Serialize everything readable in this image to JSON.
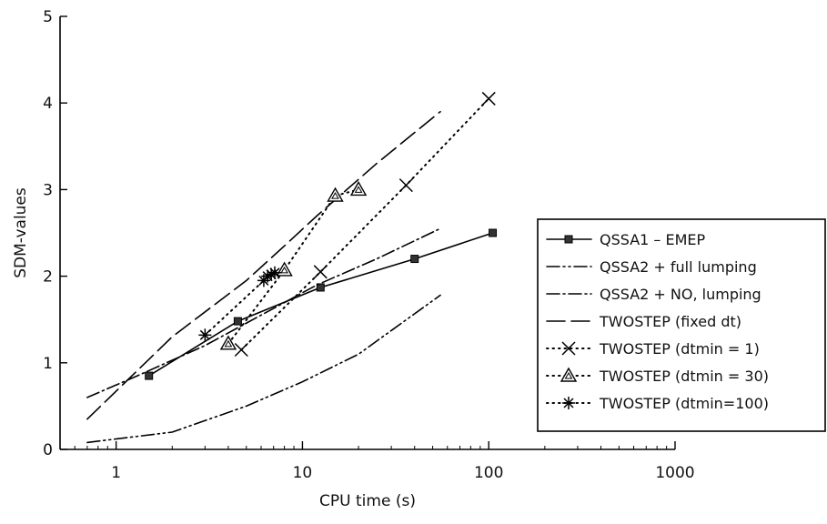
{
  "chart_data": {
    "type": "line",
    "title": "",
    "xlabel": "CPU time (s)",
    "ylabel": "SDM-values",
    "xscale": "log",
    "xlim": [
      0.5,
      1000
    ],
    "ylim": [
      0,
      5
    ],
    "xticks": [
      1,
      10,
      100,
      1000
    ],
    "xtick_labels": [
      "1",
      "10",
      "100",
      "1000"
    ],
    "yticks": [
      0,
      1,
      2,
      3,
      4,
      5
    ],
    "ytick_labels": [
      "0",
      "1",
      "2",
      "3",
      "4",
      "5"
    ],
    "grid": false,
    "legend_position": "right",
    "series": [
      {
        "name": "QSSA1 – EMEP",
        "style": "solid",
        "marker": "square",
        "x": [
          1.5,
          4.5,
          12.5,
          40,
          105
        ],
        "y": [
          0.85,
          1.48,
          1.87,
          2.2,
          2.5
        ]
      },
      {
        "name": "QSSA2 + full lumping",
        "style": "dashdotdot",
        "marker": "none",
        "x": [
          0.7,
          2,
          5,
          10,
          20,
          55
        ],
        "y": [
          0.08,
          0.2,
          0.5,
          0.78,
          1.1,
          1.78
        ]
      },
      {
        "name": "QSSA2 + NO, lumping",
        "style": "dashdot",
        "marker": "none",
        "x": [
          0.7,
          1.3,
          3,
          6,
          12,
          25,
          55
        ],
        "y": [
          0.6,
          0.85,
          1.2,
          1.55,
          1.9,
          2.2,
          2.55
        ]
      },
      {
        "name": "TWOSTEP (fixed dt)",
        "style": "longdash",
        "marker": "none",
        "x": [
          0.7,
          2,
          5,
          8,
          12,
          25,
          55
        ],
        "y": [
          0.35,
          1.3,
          1.95,
          2.35,
          2.7,
          3.3,
          3.9
        ]
      },
      {
        "name": "TWOSTEP (dtmin = 1)",
        "style": "dotted",
        "marker": "x",
        "x": [
          4.7,
          12.5,
          36,
          100
        ],
        "y": [
          1.15,
          2.05,
          3.05,
          4.05
        ]
      },
      {
        "name": "TWOSTEP (dtmin = 30)",
        "style": "dotted",
        "marker": "triangle",
        "x": [
          4,
          8,
          15,
          20
        ],
        "y": [
          1.22,
          2.07,
          2.93,
          3.0
        ]
      },
      {
        "name": "TWOSTEP (dtmin=100)",
        "style": "dotted",
        "marker": "star",
        "x": [
          3,
          6.2,
          6.5,
          6.8,
          7.1
        ],
        "y": [
          1.32,
          1.95,
          2.0,
          2.02,
          2.04
        ]
      }
    ]
  }
}
